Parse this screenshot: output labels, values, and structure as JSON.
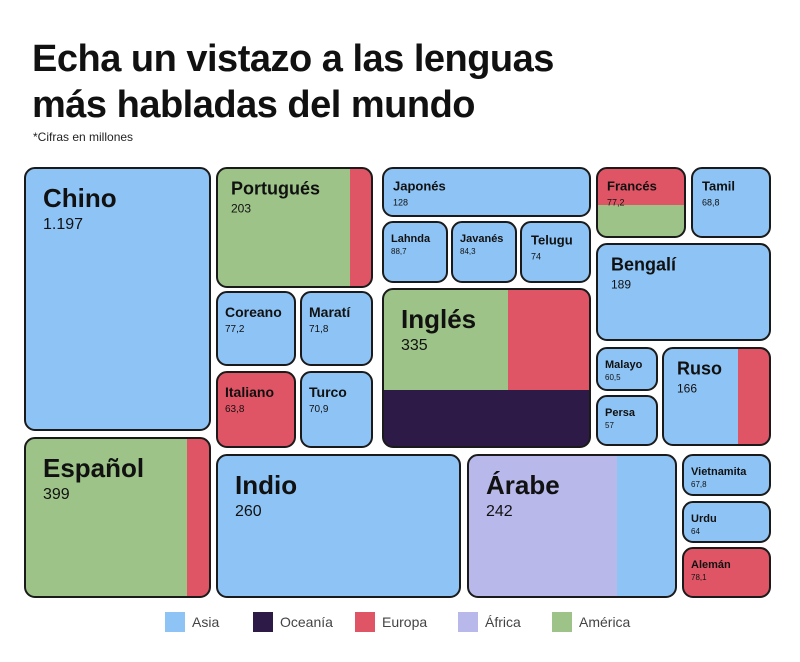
{
  "chart_data": {
    "type": "treemap",
    "title": "Echa un vistazo a las lenguas\nmás habladas del mundo",
    "subtitle": "*Cifras en millones",
    "categories": [
      "Chino",
      "Español",
      "Portugués",
      "Coreano",
      "Maratí",
      "Italiano",
      "Turco",
      "Indio",
      "Japonés",
      "Lahnda",
      "Javanés",
      "Telugu",
      "Inglés",
      "Árabe",
      "Francés",
      "Tamil",
      "Bengalí",
      "Malayo",
      "Persa",
      "Ruso",
      "Vietnamita",
      "Urdu",
      "Alemán"
    ],
    "values": [
      1197,
      399,
      203,
      77.2,
      71.8,
      63.8,
      70.9,
      260,
      128,
      88.7,
      84.3,
      74,
      335,
      242,
      77.2,
      68.8,
      189,
      60.5,
      57,
      166,
      67.8,
      64,
      78.1
    ],
    "value_labels": [
      "1.197",
      "399",
      "203",
      "77,2",
      "71,8",
      "63,8",
      "70,9",
      "260",
      "128",
      "88,7",
      "84,3",
      "74",
      "335",
      "242",
      "77,2",
      "68,8",
      "189",
      "60,5",
      "57",
      "166",
      "67,8",
      "64",
      "78,1"
    ],
    "legend": [
      {
        "name": "Asia",
        "color": "#8ec4f5"
      },
      {
        "name": "Oceanía",
        "color": "#2e1a47"
      },
      {
        "name": "Europa",
        "color": "#e05565"
      },
      {
        "name": "África",
        "color": "#b8b8ea"
      },
      {
        "name": "América",
        "color": "#9dc388"
      }
    ]
  }
}
